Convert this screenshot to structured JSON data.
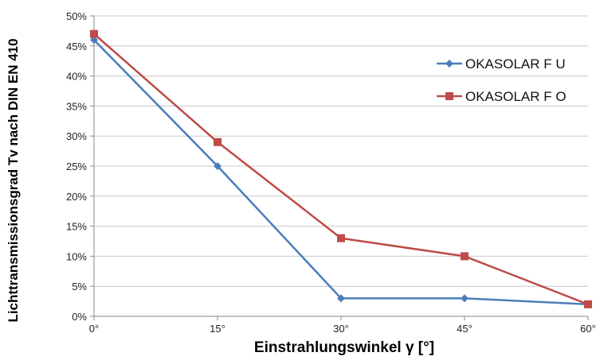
{
  "chart_data": {
    "type": "line",
    "x": [
      "0°",
      "15°",
      "30°",
      "45°",
      "60°"
    ],
    "xlabel": "Einstrahlungswinkel γ   [°]",
    "ylabel": "Lichttransmissionsgrad Tv nach DIN EN 410",
    "ylim": [
      0,
      50
    ],
    "yticks": [
      "0%",
      "5%",
      "10%",
      "15%",
      "20%",
      "25%",
      "30%",
      "35%",
      "40%",
      "45%",
      "50%"
    ],
    "grid": true,
    "legend_position": "right",
    "series": [
      {
        "name": "OKASOLAR F U",
        "values": [
          46,
          25,
          3,
          3,
          2
        ],
        "color": "#4a7ebb",
        "marker": "diamond"
      },
      {
        "name": "OKASOLAR F O",
        "values": [
          47,
          29,
          13,
          10,
          2
        ],
        "color": "#be4b48",
        "marker": "square"
      }
    ]
  }
}
